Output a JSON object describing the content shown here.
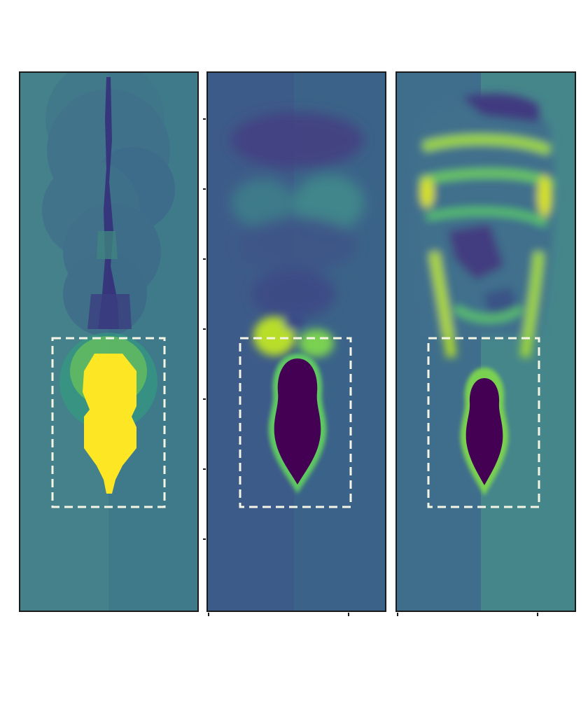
{
  "figure": {
    "colormap": "viridis",
    "region_box_color": "#f5f5e6",
    "panel_border_color": "#1a1a1a",
    "panels": [
      {
        "id": "left",
        "background": "#45818a"
      },
      {
        "id": "middle",
        "background": "#3d5b89"
      },
      {
        "id": "right",
        "background": "#3f6e8c"
      }
    ]
  }
}
